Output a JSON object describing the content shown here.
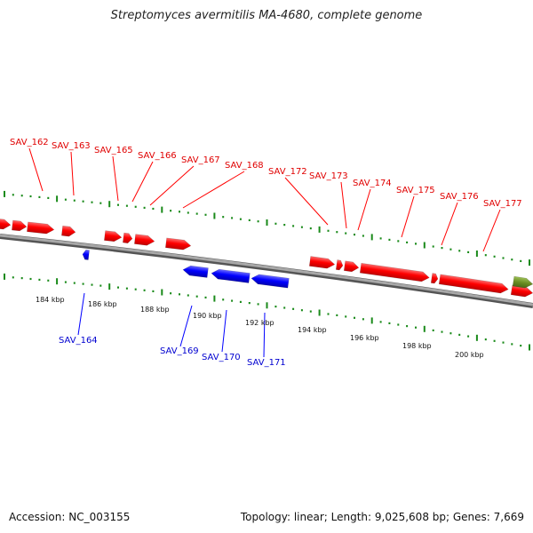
{
  "title": "Streptomyces avermitilis MA-4680, complete genome",
  "footer": {
    "accession": "Accession: NC_003155",
    "summary": "Topology: linear; Length: 9,025,608 bp; Genes: 7,669"
  },
  "colors": {
    "forward_gene": "#ff0000",
    "reverse_gene": "#0000ff",
    "other_feature": "#6b8e23",
    "tick": "#1a8a1a",
    "backbone": "#888888"
  },
  "scale": {
    "unit": "kbp",
    "labels": [
      "184 kbp",
      "186 kbp",
      "188 kbp",
      "190 kbp",
      "192 kbp",
      "194 kbp",
      "196 kbp",
      "198 kbp",
      "200 kbp"
    ]
  },
  "forward_labels": [
    "SAV_162",
    "SAV_163",
    "SAV_165",
    "SAV_166",
    "SAV_167",
    "SAV_168",
    "SAV_172",
    "SAV_173",
    "SAV_174",
    "SAV_175",
    "SAV_176",
    "SAV_177"
  ],
  "reverse_labels": [
    "SAV_164",
    "SAV_169",
    "SAV_170",
    "SAV_171"
  ]
}
